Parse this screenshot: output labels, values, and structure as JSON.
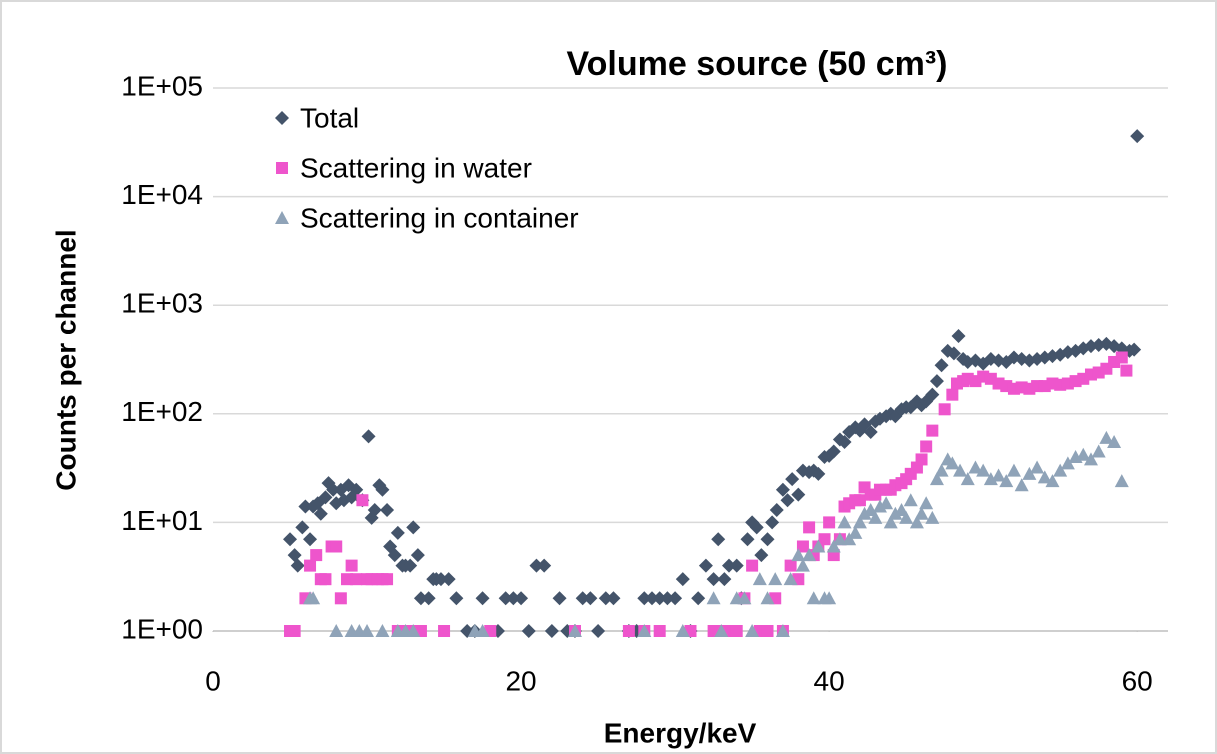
{
  "chart_data": {
    "type": "scatter",
    "title": "Volume source (50 cm³)",
    "xlabel": "Energy/keV",
    "ylabel": "Counts per channel",
    "xlim": [
      0,
      62
    ],
    "xticks": [
      0,
      20,
      40,
      60
    ],
    "ylim": [
      1,
      100000
    ],
    "yticks": [
      {
        "value": 1,
        "label": "1E+00"
      },
      {
        "value": 10,
        "label": "1E+01"
      },
      {
        "value": 100,
        "label": "1E+02"
      },
      {
        "value": 1000,
        "label": "1E+03"
      },
      {
        "value": 10000,
        "label": "1E+04"
      },
      {
        "value": 100000,
        "label": "1E+05"
      }
    ],
    "log_y": true,
    "grid": true,
    "legend": "upper left",
    "series": [
      {
        "name": "Total",
        "color": "#44546a",
        "marker": "diamond",
        "x": [
          5,
          5.3,
          5.5,
          5.8,
          6,
          6.3,
          6.5,
          6.8,
          7,
          7.3,
          7.5,
          7.8,
          8,
          8.3,
          8.5,
          8.8,
          9,
          9.3,
          9.7,
          10.1,
          10.3,
          10.5,
          10.8,
          11,
          11.3,
          11.5,
          11.8,
          12,
          12.3,
          12.5,
          12.8,
          13,
          13.3,
          13.5,
          14,
          14.3,
          14.5,
          14.8,
          15.3,
          15.8,
          16.5,
          17,
          17.5,
          18.5,
          19,
          19.5,
          20,
          20.5,
          21,
          21.5,
          22,
          22.5,
          23,
          23.5,
          24,
          24.5,
          25,
          25.5,
          26,
          27,
          27.5,
          28,
          28.5,
          29,
          29.5,
          30,
          30.5,
          31,
          31.5,
          32,
          32.5,
          32.8,
          33.2,
          33.5,
          34,
          34.3,
          34.7,
          35,
          35.3,
          35.6,
          36,
          36.3,
          36.6,
          37,
          37.3,
          37.6,
          38,
          38.3,
          38.7,
          39,
          39.3,
          39.7,
          40,
          40.3,
          40.7,
          41,
          41.3,
          41.7,
          42,
          42.3,
          42.7,
          43,
          43.3,
          43.7,
          44,
          44.3,
          44.7,
          45,
          45.3,
          45.7,
          46,
          46.3,
          46.7,
          47,
          47.3,
          47.7,
          48.1,
          48.4,
          48.7,
          49,
          49.5,
          50,
          50.5,
          51,
          51.5,
          52,
          52.5,
          53,
          53.5,
          54,
          54.5,
          55,
          55.5,
          56,
          56.5,
          57,
          57.5,
          58,
          58.5,
          59,
          59.5,
          59.8,
          60
        ],
        "values": [
          7,
          5,
          4,
          9,
          14,
          7,
          14,
          15,
          12,
          17,
          23,
          20,
          15,
          20,
          16,
          22,
          17,
          20,
          16,
          62,
          11,
          13,
          22,
          20,
          13,
          6,
          5,
          8,
          4,
          4,
          4,
          9,
          5,
          2,
          2,
          3,
          3,
          3,
          3,
          2,
          1,
          1,
          2,
          1,
          2,
          2,
          2,
          1,
          4,
          4,
          1,
          2,
          1,
          1,
          2,
          2,
          1,
          2,
          2,
          1,
          1,
          2,
          2,
          2,
          2,
          2,
          3,
          1,
          2,
          4,
          3,
          7,
          3,
          4,
          4,
          2,
          7,
          10,
          9,
          5,
          7,
          10,
          13,
          20,
          16,
          25,
          18,
          30,
          29,
          30,
          28,
          40,
          41,
          45,
          58,
          55,
          68,
          75,
          70,
          80,
          68,
          85,
          90,
          95,
          100,
          95,
          110,
          115,
          115,
          130,
          120,
          130,
          150,
          200,
          280,
          380,
          360,
          520,
          320,
          300,
          310,
          290,
          320,
          310,
          300,
          330,
          320,
          310,
          320,
          330,
          340,
          350,
          370,
          380,
          400,
          420,
          430,
          440,
          420,
          400,
          380,
          390,
          36000
        ]
      },
      {
        "name": "Scattering in water",
        "color": "#ee55cc",
        "marker": "square",
        "x": [
          5,
          5.3,
          6,
          6.3,
          6.7,
          7,
          7.3,
          7.7,
          8,
          8.3,
          8.7,
          9,
          9.3,
          9.7,
          10,
          10.3,
          10.7,
          11,
          11.3,
          12,
          12.5,
          13,
          13.5,
          15,
          18,
          23.5,
          27,
          28,
          29,
          31,
          32.5,
          33,
          33.5,
          34,
          34.5,
          35,
          35.5,
          36,
          36.5,
          37,
          37.5,
          38,
          38.3,
          38.7,
          39,
          39.3,
          39.7,
          40,
          40.3,
          40.7,
          41,
          41.3,
          41.7,
          42,
          42.3,
          42.7,
          43,
          43.3,
          43.7,
          44,
          44.3,
          44.7,
          45,
          45.3,
          45.7,
          46,
          46.3,
          46.7,
          47.5,
          48,
          48.3,
          48.7,
          49,
          49.5,
          50,
          50.5,
          51,
          51.5,
          52,
          52.5,
          53,
          53.5,
          54,
          54.5,
          55,
          55.5,
          56,
          56.5,
          57,
          57.5,
          58,
          58.5,
          59,
          59.3
        ],
        "values": [
          1,
          1,
          2,
          4,
          5,
          3,
          3,
          6,
          6,
          2,
          3,
          4,
          3,
          16,
          3,
          3,
          3,
          3,
          3,
          1,
          1,
          1,
          1,
          1,
          1,
          1,
          1,
          1,
          1,
          1,
          1,
          1,
          1,
          1,
          2,
          4,
          1,
          1,
          2,
          1,
          4,
          3,
          6,
          9,
          5,
          6,
          7,
          10,
          5,
          7,
          14,
          15,
          16,
          16,
          21,
          18,
          18,
          20,
          20,
          20,
          22,
          23,
          25,
          28,
          32,
          38,
          50,
          70,
          110,
          150,
          190,
          200,
          210,
          200,
          220,
          210,
          190,
          180,
          170,
          175,
          170,
          180,
          180,
          190,
          185,
          190,
          200,
          210,
          230,
          240,
          260,
          300,
          330,
          250
        ]
      },
      {
        "name": "Scattering in container",
        "color": "#8fa3b8",
        "marker": "triangle",
        "x": [
          6.3,
          6.5,
          8,
          9,
          9.5,
          10,
          11,
          12,
          12.5,
          13,
          17,
          17.5,
          23.5,
          28,
          30.5,
          32.5,
          33,
          34,
          34.5,
          35,
          35.5,
          36,
          36.5,
          37,
          37.5,
          38,
          38.3,
          38.7,
          39,
          39.3,
          39.7,
          40,
          40.3,
          40.7,
          41,
          41.3,
          41.7,
          42,
          42.3,
          42.7,
          43,
          43.3,
          43.7,
          44,
          44.3,
          44.7,
          45,
          45.3,
          45.7,
          46,
          46.3,
          46.7,
          47,
          47.3,
          47.7,
          48,
          48.5,
          49,
          49.5,
          50,
          50.5,
          51,
          51.5,
          52,
          52.5,
          53,
          53.5,
          54,
          54.5,
          55,
          55.5,
          56,
          56.5,
          57,
          57.5,
          58,
          58.5,
          59
        ],
        "values": [
          2,
          2,
          1,
          1,
          1,
          1,
          1,
          1,
          1,
          1,
          1,
          1,
          1,
          1,
          1,
          2,
          1,
          2,
          2,
          1,
          3,
          2,
          3,
          1,
          3,
          5,
          4,
          5,
          2,
          6,
          2,
          2,
          6,
          7,
          10,
          7,
          8,
          10,
          12,
          13,
          11,
          14,
          15,
          10,
          12,
          13,
          11,
          16,
          10,
          12,
          15,
          11,
          25,
          30,
          38,
          35,
          30,
          25,
          32,
          30,
          25,
          27,
          24,
          30,
          22,
          28,
          32,
          26,
          24,
          30,
          35,
          40,
          42,
          38,
          45,
          60,
          55,
          24
        ]
      }
    ]
  }
}
